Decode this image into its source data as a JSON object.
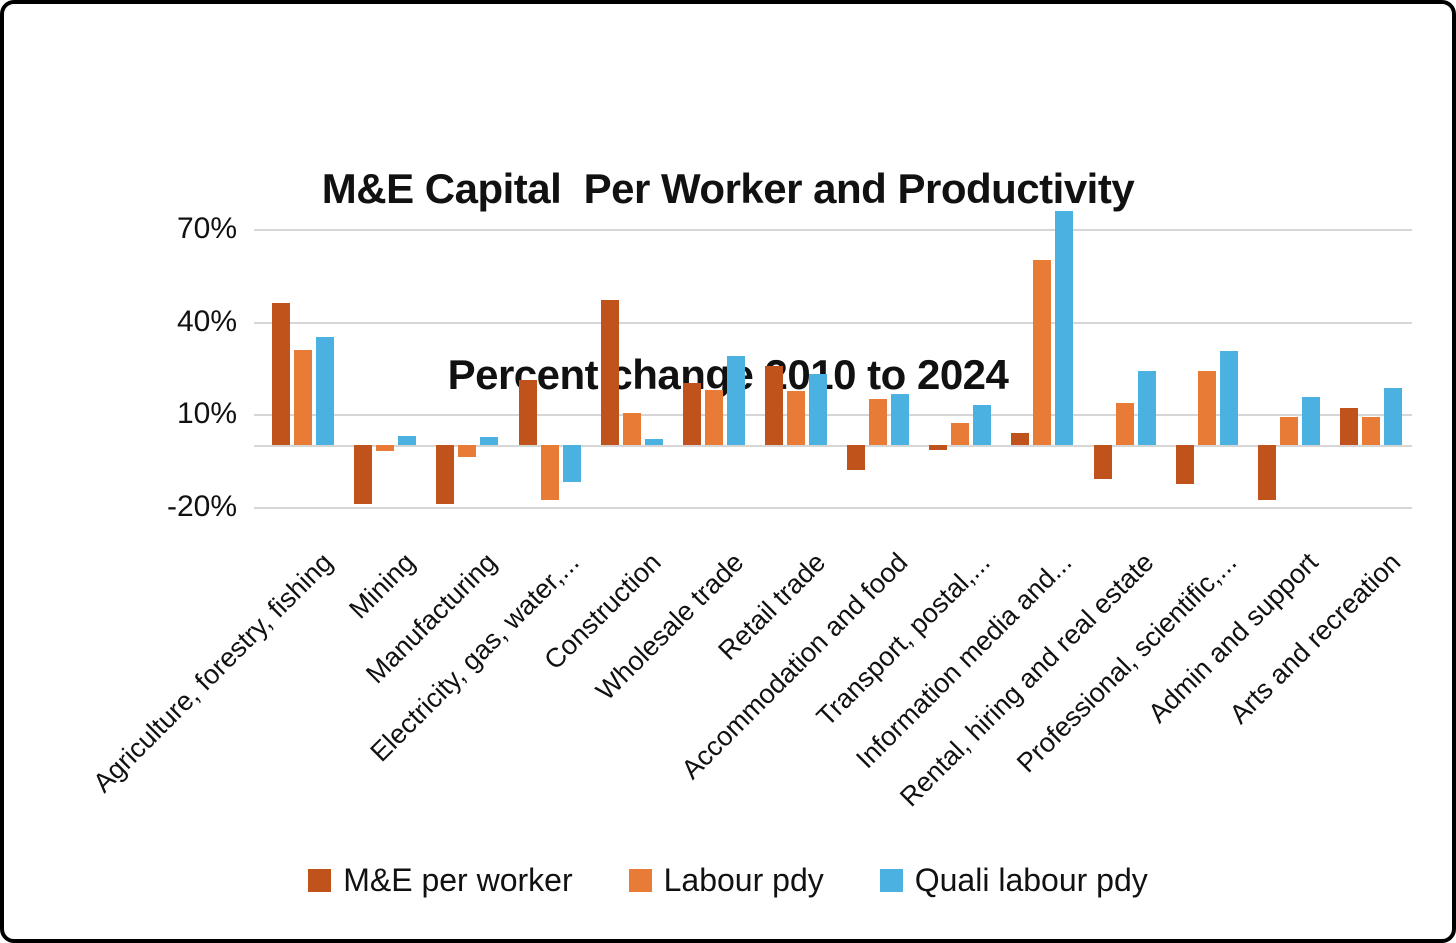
{
  "chart_data": {
    "type": "bar",
    "title": "M&E Capital  Per Worker and Productivity",
    "subtitle": "Percent change 2010 to 2024",
    "categories": [
      "Agriculture, forestry, fishing",
      "Mining",
      "Manufacturing",
      "Electricity, gas, water,...",
      "Construction",
      "Wholesale trade",
      "Retail trade",
      "Accommodation and food",
      "Transport, postal,...",
      "Information media and...",
      "Rental, hiring and real estate",
      "Professional, scientific,...",
      "Admin and support",
      "Arts and recreation"
    ],
    "series": [
      {
        "name": "M&E per worker",
        "color": "#C0531B",
        "values": [
          46,
          -19,
          -19,
          21,
          47,
          20,
          25.5,
          -8,
          -1.5,
          4,
          -11,
          -12.5,
          -18,
          12
        ]
      },
      {
        "name": "Labour pdy",
        "color": "#E87B35",
        "values": [
          31,
          -2,
          -4,
          -18,
          10.5,
          18,
          17.5,
          15,
          7,
          60,
          13.5,
          24,
          9,
          9
        ]
      },
      {
        "name": "Quali labour pdy",
        "color": "#4BB1E0",
        "values": [
          35,
          3,
          2.5,
          -12,
          2,
          29,
          23,
          16.5,
          13,
          76,
          24,
          30.5,
          15.5,
          18.5
        ]
      }
    ],
    "y_ticks": [
      "70%",
      "40%",
      "10%",
      "-20%"
    ],
    "y_tick_values": [
      70,
      40,
      10,
      -20
    ],
    "ylim": [
      -22,
      81
    ],
    "grid": true,
    "legend_position": "bottom",
    "gridline_color": "#D6D6D6",
    "axis_label_color": "#111111"
  }
}
